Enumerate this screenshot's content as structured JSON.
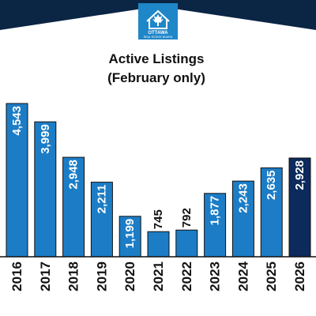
{
  "header": {
    "logo_text_main": "OTTAWA",
    "logo_text_sub": "REAL ESTATE BOARD",
    "colors": {
      "banner": "#0b2545",
      "logo_bg": "#1f86c8"
    }
  },
  "chart_data": {
    "type": "bar",
    "title": "Active Listings",
    "subtitle": "(February only)",
    "categories": [
      "2016",
      "2017",
      "2018",
      "2019",
      "2020",
      "2021",
      "2022",
      "2023",
      "2024",
      "2025",
      "2026"
    ],
    "values": [
      4543,
      3999,
      2948,
      2211,
      1199,
      745,
      792,
      1877,
      2243,
      2635,
      2928
    ],
    "value_labels": [
      "4,543",
      "3,999",
      "2,948",
      "2,211",
      "1,199",
      "745",
      "792",
      "1,877",
      "2,243",
      "2,635",
      "2,928"
    ],
    "xlabel": "",
    "ylabel": "",
    "ylim": [
      0,
      4543
    ],
    "grid": false,
    "colors": {
      "bar": "#1c7dc6",
      "highlight": "#0c2a5c",
      "outline": "#111111"
    },
    "highlight_category": "2026"
  }
}
